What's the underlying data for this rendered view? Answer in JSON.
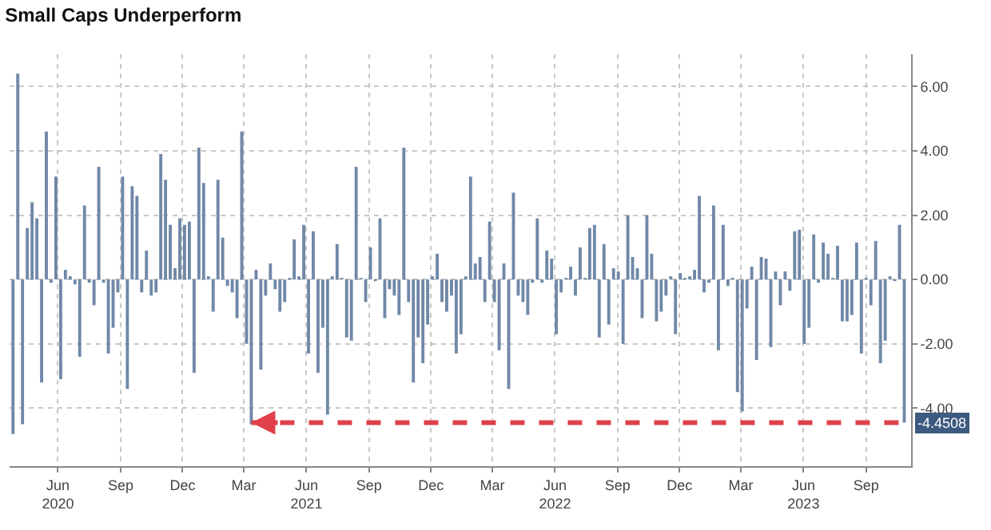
{
  "chart_data": {
    "type": "bar",
    "title": "Small Caps Underperform",
    "x": [
      "2020-03-27",
      "2020-04-03",
      "2020-04-10",
      "2020-04-17",
      "2020-04-24",
      "2020-05-01",
      "2020-05-08",
      "2020-05-15",
      "2020-05-22",
      "2020-05-29",
      "2020-06-05",
      "2020-06-12",
      "2020-06-19",
      "2020-06-26",
      "2020-07-03",
      "2020-07-10",
      "2020-07-17",
      "2020-07-24",
      "2020-07-31",
      "2020-08-07",
      "2020-08-14",
      "2020-08-21",
      "2020-08-28",
      "2020-09-04",
      "2020-09-11",
      "2020-09-18",
      "2020-09-25",
      "2020-10-02",
      "2020-10-09",
      "2020-10-16",
      "2020-10-23",
      "2020-10-30",
      "2020-11-06",
      "2020-11-13",
      "2020-11-20",
      "2020-11-27",
      "2020-12-04",
      "2020-12-11",
      "2020-12-18",
      "2020-12-25",
      "2021-01-01",
      "2021-01-08",
      "2021-01-15",
      "2021-01-22",
      "2021-01-29",
      "2021-02-05",
      "2021-02-12",
      "2021-02-19",
      "2021-02-26",
      "2021-03-05",
      "2021-03-12",
      "2021-03-19",
      "2021-03-26",
      "2021-04-02",
      "2021-04-09",
      "2021-04-16",
      "2021-04-23",
      "2021-04-30",
      "2021-05-07",
      "2021-05-14",
      "2021-05-21",
      "2021-05-28",
      "2021-06-04",
      "2021-06-11",
      "2021-06-18",
      "2021-06-25",
      "2021-07-02",
      "2021-07-09",
      "2021-07-16",
      "2021-07-23",
      "2021-07-30",
      "2021-08-06",
      "2021-08-13",
      "2021-08-20",
      "2021-08-27",
      "2021-09-03",
      "2021-09-10",
      "2021-09-17",
      "2021-09-24",
      "2021-10-01",
      "2021-10-08",
      "2021-10-15",
      "2021-10-22",
      "2021-10-29",
      "2021-11-05",
      "2021-11-12",
      "2021-11-19",
      "2021-11-26",
      "2021-12-03",
      "2021-12-10",
      "2021-12-17",
      "2021-12-24",
      "2021-12-31",
      "2022-01-07",
      "2022-01-14",
      "2022-01-21",
      "2022-01-28",
      "2022-02-04",
      "2022-02-11",
      "2022-02-18",
      "2022-02-25",
      "2022-03-04",
      "2022-03-11",
      "2022-03-18",
      "2022-03-25",
      "2022-04-01",
      "2022-04-08",
      "2022-04-15",
      "2022-04-22",
      "2022-04-29",
      "2022-05-06",
      "2022-05-13",
      "2022-05-20",
      "2022-05-27",
      "2022-06-03",
      "2022-06-10",
      "2022-06-17",
      "2022-06-24",
      "2022-07-01",
      "2022-07-08",
      "2022-07-15",
      "2022-07-22",
      "2022-07-29",
      "2022-08-05",
      "2022-08-12",
      "2022-08-19",
      "2022-08-26",
      "2022-09-02",
      "2022-09-09",
      "2022-09-16",
      "2022-09-23",
      "2022-09-30",
      "2022-10-07",
      "2022-10-14",
      "2022-10-21",
      "2022-10-28",
      "2022-11-04",
      "2022-11-11",
      "2022-11-18",
      "2022-11-25",
      "2022-12-02",
      "2022-12-09",
      "2022-12-16",
      "2022-12-23",
      "2022-12-30",
      "2023-01-06",
      "2023-01-13",
      "2023-01-20",
      "2023-01-27",
      "2023-02-03",
      "2023-02-10",
      "2023-02-17",
      "2023-02-24",
      "2023-03-03",
      "2023-03-10",
      "2023-03-17",
      "2023-03-24",
      "2023-03-31",
      "2023-04-07",
      "2023-04-14",
      "2023-04-21",
      "2023-04-28",
      "2023-05-05",
      "2023-05-12",
      "2023-05-19",
      "2023-05-26",
      "2023-06-02",
      "2023-06-09",
      "2023-06-16",
      "2023-06-23",
      "2023-06-30",
      "2023-07-07",
      "2023-07-14",
      "2023-07-21",
      "2023-07-28",
      "2023-08-04",
      "2023-08-11",
      "2023-08-18",
      "2023-08-25",
      "2023-09-01",
      "2023-09-08",
      "2023-09-15",
      "2023-09-22",
      "2023-09-29",
      "2023-10-06",
      "2023-10-13",
      "2023-10-20",
      "2023-10-27"
    ],
    "values": [
      -4.8,
      6.4,
      -4.5,
      1.6,
      2.4,
      1.9,
      -3.2,
      4.6,
      -0.1,
      3.2,
      -3.1,
      0.3,
      0.1,
      -0.15,
      -2.4,
      2.3,
      -0.1,
      -0.8,
      3.5,
      -0.1,
      -2.3,
      -1.5,
      -0.4,
      3.2,
      -3.4,
      2.9,
      2.6,
      -0.4,
      0.9,
      -0.5,
      -0.4,
      3.9,
      3.1,
      1.7,
      0.35,
      1.9,
      1.7,
      1.8,
      -2.9,
      4.1,
      3.0,
      0.1,
      -1.0,
      3.1,
      1.3,
      -0.2,
      -0.4,
      -1.2,
      4.6,
      -2.0,
      -4.5,
      0.3,
      -2.8,
      -0.5,
      0.5,
      -0.3,
      -1.0,
      -0.7,
      0.05,
      1.25,
      0.1,
      1.7,
      -2.3,
      1.5,
      -2.9,
      -1.5,
      -4.2,
      0.1,
      1.1,
      0.05,
      -1.8,
      -1.9,
      3.5,
      0.05,
      -0.7,
      1.0,
      -0.05,
      1.9,
      -1.2,
      -0.3,
      -0.5,
      -1.1,
      4.1,
      -0.7,
      -3.2,
      -1.8,
      -2.6,
      -1.4,
      0.1,
      0.8,
      -0.7,
      -1.0,
      -0.5,
      -2.3,
      -1.7,
      0.1,
      3.2,
      0.5,
      0.7,
      -0.7,
      1.8,
      -0.7,
      -2.2,
      0.5,
      -3.4,
      2.7,
      -0.5,
      -0.7,
      -1.1,
      -0.1,
      1.9,
      -0.1,
      0.9,
      0.65,
      -1.7,
      -0.4,
      0.05,
      0.4,
      -0.5,
      1.0,
      0.05,
      1.6,
      1.7,
      -1.8,
      1.1,
      -1.4,
      0.35,
      0.25,
      -2.0,
      2.0,
      0.7,
      0.35,
      -1.2,
      2.0,
      0.8,
      -1.3,
      -1.0,
      -0.5,
      0.1,
      -1.7,
      0.2,
      0.05,
      0.1,
      0.3,
      2.6,
      -0.4,
      -0.1,
      2.3,
      -2.2,
      1.7,
      -0.2,
      0.05,
      -3.5,
      -4.1,
      -0.9,
      0.4,
      -2.5,
      0.7,
      0.65,
      -2.1,
      0.25,
      -0.8,
      0.25,
      -0.35,
      1.5,
      1.55,
      -2.0,
      -1.5,
      1.4,
      -0.1,
      1.15,
      0.8,
      0.05,
      1.05,
      -1.3,
      -1.3,
      -1.1,
      1.15,
      -2.3,
      0.05,
      -0.8,
      1.2,
      -2.6,
      -1.9,
      0.1,
      -0.05,
      1.7,
      -4.4508
    ],
    "color": "#7088a8",
    "xlim": [
      "2020-03-22",
      "2023-11-06"
    ],
    "xticks": [
      {
        "value": "2020-06-01",
        "label": "Jun\n2020"
      },
      {
        "value": "2020-09-01",
        "label": "Sep"
      },
      {
        "value": "2020-12-01",
        "label": "Dec"
      },
      {
        "value": "2021-03-01",
        "label": "Mar"
      },
      {
        "value": "2021-06-01",
        "label": "Jun\n2021"
      },
      {
        "value": "2021-09-01",
        "label": "Sep"
      },
      {
        "value": "2021-12-01",
        "label": "Dec"
      },
      {
        "value": "2022-03-01",
        "label": "Mar"
      },
      {
        "value": "2022-06-01",
        "label": "Jun\n2022"
      },
      {
        "value": "2022-09-01",
        "label": "Sep"
      },
      {
        "value": "2022-12-01",
        "label": "Dec"
      },
      {
        "value": "2023-03-01",
        "label": "Mar"
      },
      {
        "value": "2023-06-01",
        "label": "Jun\n2023"
      },
      {
        "value": "2023-09-01",
        "label": "Sep"
      }
    ],
    "ylim": [
      -5.8,
      7.0
    ],
    "yticks": [
      {
        "value": -4,
        "label": "-4.00"
      },
      {
        "value": -2,
        "label": "-2.00"
      },
      {
        "value": 0,
        "label": "0.00"
      },
      {
        "value": 2,
        "label": "2.00"
      },
      {
        "value": 4,
        "label": "4.00"
      },
      {
        "value": 6,
        "label": "6.00"
      }
    ],
    "ref_lines": [
      {
        "axis": "y",
        "value": -4.4508,
        "label": "-4.4508",
        "color": "#e0404a",
        "line_style": "dashed"
      }
    ],
    "grid": true
  }
}
